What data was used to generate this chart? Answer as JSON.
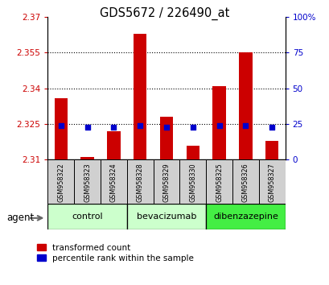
{
  "title": "GDS5672 / 226490_at",
  "samples": [
    "GSM958322",
    "GSM958323",
    "GSM958324",
    "GSM958328",
    "GSM958329",
    "GSM958330",
    "GSM958325",
    "GSM958326",
    "GSM958327"
  ],
  "red_values": [
    2.336,
    2.311,
    2.322,
    2.363,
    2.328,
    2.316,
    2.341,
    2.355,
    2.318
  ],
  "blue_values": [
    24,
    23,
    23,
    24,
    23,
    23,
    24,
    24,
    23
  ],
  "groups": [
    {
      "label": "control",
      "start": 0,
      "end": 3,
      "color": "#ccffcc"
    },
    {
      "label": "bevacizumab",
      "start": 3,
      "end": 6,
      "color": "#ccffcc"
    },
    {
      "label": "dibenzazepine",
      "start": 6,
      "end": 9,
      "color": "#44ee44"
    }
  ],
  "ymin": 2.31,
  "ymax": 2.37,
  "yticks": [
    2.31,
    2.325,
    2.34,
    2.355,
    2.37
  ],
  "ytick_labels": [
    "2.31",
    "2.325",
    "2.34",
    "2.355",
    "2.37"
  ],
  "y2min": 0,
  "y2max": 100,
  "y2ticks": [
    0,
    25,
    50,
    75,
    100
  ],
  "y2tick_labels": [
    "0",
    "25",
    "50",
    "75",
    "100%"
  ],
  "bar_width": 0.5,
  "dot_size": 22,
  "red_color": "#cc0000",
  "blue_color": "#0000cc",
  "agent_label": "agent",
  "legend_red": "transformed count",
  "legend_blue": "percentile rank within the sample",
  "tick_label_color_left": "#cc0000",
  "tick_label_color_right": "#0000cc"
}
